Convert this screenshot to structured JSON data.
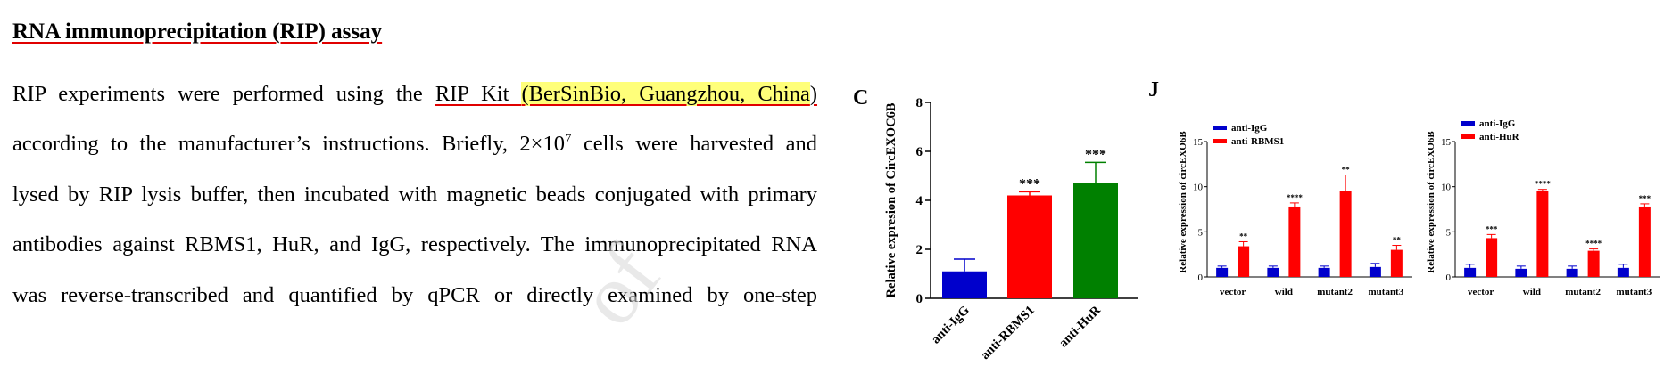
{
  "heading": "RNA immunoprecipitation (RIP) assay",
  "body_lines": [
    {
      "pre": "RIP experiments were performed using the ",
      "ul": "RIP Kit ",
      "hl": "(BerSinBio, Guangzhou, China",
      "end": ")"
    },
    {
      "pre": "according to the manufacturer’s instructions. Briefly, 2×10",
      "sup": "7",
      "post": " cells were harvested and"
    },
    {
      "text": "lysed by RIP lysis buffer, then incubated with magnetic beads conjugated with primary"
    },
    {
      "text": "antibodies against RBMS1, HuR, and IgG, respectively. The immunoprecipitated RNA"
    },
    {
      "text": "was reverse-transcribed and quantified by qPCR or directly examined by one-step"
    }
  ],
  "watermark": "of",
  "panels": {
    "C": "C",
    "J": "J"
  },
  "colors": {
    "igg": "#0000cc",
    "red": "#ff0000",
    "green": "#008000",
    "underline": "#e00000",
    "highlight": "#ffff7a"
  },
  "chart_data": [
    {
      "type": "bar",
      "panel": "C",
      "ylabel": "Relative expresion of CircEXOC6B",
      "ylim": [
        0,
        8
      ],
      "yticks": [
        0,
        2,
        4,
        6,
        8
      ],
      "categories": [
        "anti-IgG",
        "anti-RBMS1",
        "anti-HuR"
      ],
      "values": [
        1.1,
        4.2,
        4.7
      ],
      "errors": [
        0.5,
        0.15,
        0.85
      ],
      "colors": [
        "#0000cc",
        "#ff0000",
        "#008000"
      ],
      "significance": [
        "",
        "***",
        "***"
      ]
    },
    {
      "type": "bar",
      "panel": "J",
      "ylabel": "Relative expression of circEXO6B",
      "ylim": [
        0,
        15
      ],
      "yticks": [
        0,
        5,
        10,
        15
      ],
      "legend": [
        "anti-IgG",
        "anti-RBMS1"
      ],
      "legend_position": "top-left",
      "categories": [
        "vector",
        "wild",
        "mutant2",
        "mutant3"
      ],
      "series": [
        {
          "name": "anti-IgG",
          "values": [
            1.0,
            1.0,
            1.0,
            1.1
          ],
          "errors": [
            0.2,
            0.2,
            0.2,
            0.4
          ]
        },
        {
          "name": "anti-RBMS1",
          "values": [
            3.4,
            7.8,
            9.5,
            3.0
          ],
          "errors": [
            0.5,
            0.4,
            1.8,
            0.5
          ]
        }
      ],
      "significance": [
        "**",
        "****",
        "**",
        "**"
      ]
    },
    {
      "type": "bar",
      "panel": "J",
      "ylabel": "Relative expression of circEXO6B",
      "ylim": [
        0,
        15
      ],
      "yticks": [
        0,
        5,
        10,
        15
      ],
      "legend": [
        "anti-IgG",
        "anti-HuR"
      ],
      "legend_position": "top-left",
      "categories": [
        "vector",
        "wild",
        "mutant2",
        "mutant3"
      ],
      "series": [
        {
          "name": "anti-IgG",
          "values": [
            1.0,
            0.9,
            0.9,
            1.0
          ],
          "errors": [
            0.4,
            0.3,
            0.3,
            0.4
          ]
        },
        {
          "name": "anti-HuR",
          "values": [
            4.3,
            9.5,
            2.9,
            7.8
          ],
          "errors": [
            0.4,
            0.2,
            0.2,
            0.3
          ]
        }
      ],
      "significance": [
        "***",
        "****",
        "****",
        "***"
      ]
    }
  ]
}
